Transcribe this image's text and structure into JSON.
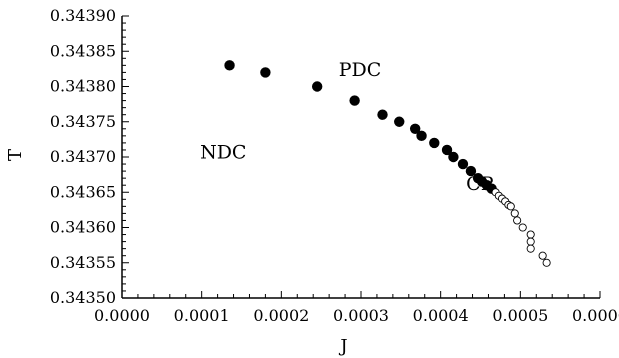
{
  "chart_data": {
    "type": "scatter",
    "title": "",
    "xlabel": "J",
    "ylabel": "T",
    "xlim": [
      0.0,
      0.0006
    ],
    "ylim": [
      0.3435,
      0.3439
    ],
    "xticks": [
      "0.0000",
      "0.0001",
      "0.0002",
      "0.0003",
      "0.0004",
      "0.0005",
      "0.0006"
    ],
    "yticks": [
      "0.34350",
      "0.34355",
      "0.34360",
      "0.34365",
      "0.34370",
      "0.34375",
      "0.34380",
      "0.34385",
      "0.34390"
    ],
    "grid": false,
    "annotations": [
      {
        "text": "PDC",
        "x": 0.000272,
        "y": 0.343815
      },
      {
        "text": "NDC",
        "x": 9.8e-05,
        "y": 0.343698
      },
      {
        "text": "CP",
        "x": 0.000432,
        "y": 0.343653
      }
    ],
    "series": [
      {
        "marker": "filled-circle",
        "color": "#000000",
        "points": [
          [
            0.000135,
            0.34383
          ],
          [
            0.00018,
            0.34382
          ],
          [
            0.000245,
            0.3438
          ],
          [
            0.000292,
            0.34378
          ],
          [
            0.000327,
            0.34376
          ],
          [
            0.000348,
            0.34375
          ],
          [
            0.000368,
            0.34374
          ],
          [
            0.000376,
            0.34373
          ],
          [
            0.000392,
            0.34372
          ],
          [
            0.000408,
            0.34371
          ],
          [
            0.000416,
            0.3437
          ],
          [
            0.000428,
            0.34369
          ],
          [
            0.000438,
            0.34368
          ],
          [
            0.000447,
            0.34367
          ],
          [
            0.000452,
            0.343665
          ],
          [
            0.000458,
            0.34366
          ],
          [
            0.000464,
            0.343655
          ]
        ]
      },
      {
        "marker": "open-circle",
        "color": "#000000",
        "points": [
          [
            0.000469,
            0.34365
          ],
          [
            0.000473,
            0.343645
          ],
          [
            0.000477,
            0.343641
          ],
          [
            0.000481,
            0.343637
          ],
          [
            0.000485,
            0.343632
          ],
          [
            0.000488,
            0.34363
          ],
          [
            0.000493,
            0.34362
          ],
          [
            0.000496,
            0.34361
          ],
          [
            0.000503,
            0.3436
          ],
          [
            0.000513,
            0.34359
          ],
          [
            0.000513,
            0.34358
          ],
          [
            0.000513,
            0.34357
          ],
          [
            0.000528,
            0.34356
          ],
          [
            0.000533,
            0.34355
          ]
        ]
      }
    ]
  }
}
